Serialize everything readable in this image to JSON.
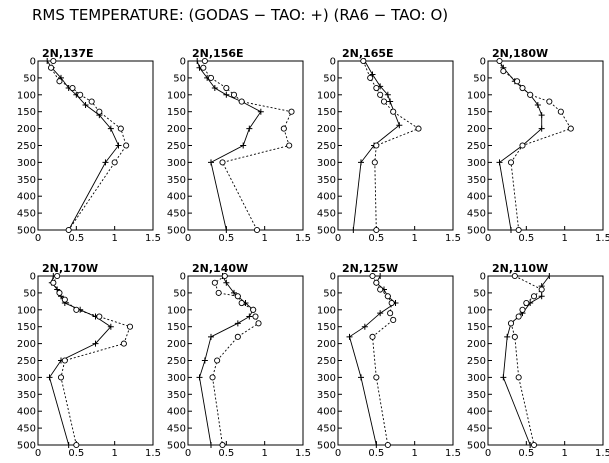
{
  "title": "RMS TEMPERATURE: (GODAS − TAO: +) (RA6 − TAO: O)",
  "chart_data": [
    {
      "type": "line",
      "title": "2N,137E",
      "xlim": [
        0,
        1.5
      ],
      "ylim": [
        500,
        0
      ],
      "x_ticks": [
        "0",
        "0.5",
        "1",
        "1.5"
      ],
      "y_ticks": [
        "0",
        "50",
        "100",
        "150",
        "200",
        "250",
        "300",
        "350",
        "400",
        "450",
        "500"
      ],
      "series": [
        {
          "marker": "+",
          "style": "solid",
          "points": [
            [
              0.12,
              0
            ],
            [
              0.18,
              20
            ],
            [
              0.3,
              50
            ],
            [
              0.4,
              80
            ],
            [
              0.5,
              100
            ],
            [
              0.62,
              130
            ],
            [
              0.8,
              160
            ],
            [
              0.95,
              200
            ],
            [
              1.05,
              250
            ],
            [
              0.88,
              300
            ],
            [
              0.4,
              500
            ]
          ]
        },
        {
          "marker": "o",
          "style": "dashed",
          "points": [
            [
              0.2,
              0
            ],
            [
              0.17,
              20
            ],
            [
              0.28,
              60
            ],
            [
              0.45,
              80
            ],
            [
              0.55,
              100
            ],
            [
              0.7,
              120
            ],
            [
              0.8,
              150
            ],
            [
              1.08,
              200
            ],
            [
              1.15,
              250
            ],
            [
              1.0,
              300
            ],
            [
              0.4,
              500
            ]
          ]
        }
      ]
    },
    {
      "type": "line",
      "title": "2N,156E",
      "xlim": [
        0,
        1.5
      ],
      "ylim": [
        500,
        0
      ],
      "x_ticks": [
        "0",
        "0.5",
        "1",
        "1.5"
      ],
      "y_ticks": [
        "0",
        "50",
        "100",
        "150",
        "200",
        "250",
        "300",
        "350",
        "400",
        "450",
        "500"
      ],
      "series": [
        {
          "marker": "+",
          "style": "solid",
          "points": [
            [
              0.12,
              0
            ],
            [
              0.15,
              20
            ],
            [
              0.25,
              50
            ],
            [
              0.35,
              80
            ],
            [
              0.5,
              100
            ],
            [
              0.7,
              120
            ],
            [
              0.95,
              150
            ],
            [
              0.8,
              200
            ],
            [
              0.72,
              250
            ],
            [
              0.3,
              300
            ],
            [
              0.5,
              500
            ]
          ]
        },
        {
          "marker": "o",
          "style": "dashed",
          "points": [
            [
              0.22,
              0
            ],
            [
              0.2,
              20
            ],
            [
              0.3,
              50
            ],
            [
              0.5,
              80
            ],
            [
              0.6,
              100
            ],
            [
              0.7,
              120
            ],
            [
              1.35,
              150
            ],
            [
              1.25,
              200
            ],
            [
              1.32,
              250
            ],
            [
              0.45,
              300
            ],
            [
              0.9,
              500
            ]
          ]
        }
      ]
    },
    {
      "type": "line",
      "title": "2N,165E",
      "xlim": [
        0,
        1.5
      ],
      "ylim": [
        500,
        0
      ],
      "x_ticks": [
        "0",
        "0.5",
        "1",
        "1.5"
      ],
      "y_ticks": [
        "0",
        "50",
        "100",
        "150",
        "200",
        "250",
        "300",
        "350",
        "400",
        "450",
        "500"
      ],
      "series": [
        {
          "marker": "+",
          "style": "solid",
          "points": [
            [
              0.35,
              0
            ],
            [
              0.45,
              40
            ],
            [
              0.55,
              75
            ],
            [
              0.65,
              100
            ],
            [
              0.68,
              120
            ],
            [
              0.8,
              190
            ],
            [
              0.47,
              250
            ],
            [
              0.3,
              300
            ],
            [
              0.2,
              500
            ]
          ]
        },
        {
          "marker": "o",
          "style": "dashed",
          "points": [
            [
              0.33,
              0
            ],
            [
              0.42,
              50
            ],
            [
              0.5,
              80
            ],
            [
              0.55,
              100
            ],
            [
              0.6,
              120
            ],
            [
              0.72,
              150
            ],
            [
              1.05,
              200
            ],
            [
              0.5,
              250
            ],
            [
              0.48,
              300
            ],
            [
              0.5,
              500
            ]
          ]
        }
      ]
    },
    {
      "type": "line",
      "title": "2N,180W",
      "xlim": [
        0,
        1.5
      ],
      "ylim": [
        500,
        0
      ],
      "x_ticks": [
        "0",
        "0.5",
        "1",
        "1.5"
      ],
      "y_ticks": [
        "0",
        "50",
        "100",
        "150",
        "200",
        "250",
        "300",
        "350",
        "400",
        "450",
        "500"
      ],
      "series": [
        {
          "marker": "+",
          "style": "solid",
          "points": [
            [
              0.15,
              0
            ],
            [
              0.2,
              20
            ],
            [
              0.35,
              60
            ],
            [
              0.45,
              80
            ],
            [
              0.55,
              100
            ],
            [
              0.65,
              130
            ],
            [
              0.7,
              160
            ],
            [
              0.7,
              200
            ],
            [
              0.45,
              250
            ],
            [
              0.15,
              300
            ],
            [
              0.3,
              500
            ]
          ]
        },
        {
          "marker": "o",
          "style": "dashed",
          "points": [
            [
              0.15,
              0
            ],
            [
              0.2,
              30
            ],
            [
              0.38,
              60
            ],
            [
              0.45,
              80
            ],
            [
              0.55,
              100
            ],
            [
              0.8,
              120
            ],
            [
              0.95,
              150
            ],
            [
              1.08,
              200
            ],
            [
              0.45,
              250
            ],
            [
              0.3,
              300
            ],
            [
              0.4,
              500
            ]
          ]
        }
      ]
    },
    {
      "type": "line",
      "title": "2N,170W",
      "xlim": [
        0,
        1.5
      ],
      "ylim": [
        500,
        0
      ],
      "x_ticks": [
        "0",
        "0.5",
        "1",
        "1.5"
      ],
      "y_ticks": [
        "0",
        "50",
        "100",
        "150",
        "200",
        "250",
        "300",
        "350",
        "400",
        "450",
        "500"
      ],
      "series": [
        {
          "marker": "+",
          "style": "solid",
          "points": [
            [
              0.2,
              0
            ],
            [
              0.18,
              20
            ],
            [
              0.25,
              40
            ],
            [
              0.3,
              60
            ],
            [
              0.35,
              80
            ],
            [
              0.55,
              100
            ],
            [
              0.75,
              120
            ],
            [
              0.95,
              150
            ],
            [
              0.75,
              200
            ],
            [
              0.3,
              250
            ],
            [
              0.15,
              300
            ],
            [
              0.4,
              500
            ]
          ]
        },
        {
          "marker": "o",
          "style": "dashed",
          "points": [
            [
              0.25,
              0
            ],
            [
              0.2,
              20
            ],
            [
              0.28,
              50
            ],
            [
              0.35,
              70
            ],
            [
              0.5,
              100
            ],
            [
              0.8,
              120
            ],
            [
              1.2,
              150
            ],
            [
              1.12,
              200
            ],
            [
              0.35,
              250
            ],
            [
              0.3,
              300
            ],
            [
              0.5,
              500
            ]
          ]
        }
      ]
    },
    {
      "type": "line",
      "title": "2N,140W",
      "xlim": [
        0,
        1.5
      ],
      "ylim": [
        500,
        0
      ],
      "x_ticks": [
        "0",
        "0.5",
        "1",
        "1.5"
      ],
      "y_ticks": [
        "0",
        "50",
        "100",
        "150",
        "200",
        "250",
        "300",
        "350",
        "400",
        "450",
        "500"
      ],
      "series": [
        {
          "marker": "+",
          "style": "solid",
          "points": [
            [
              0.45,
              0
            ],
            [
              0.5,
              20
            ],
            [
              0.6,
              50
            ],
            [
              0.65,
              60
            ],
            [
              0.75,
              80
            ],
            [
              0.85,
              100
            ],
            [
              0.8,
              120
            ],
            [
              0.65,
              140
            ],
            [
              0.3,
              180
            ],
            [
              0.22,
              250
            ],
            [
              0.15,
              300
            ],
            [
              0.3,
              500
            ]
          ]
        },
        {
          "marker": "o",
          "style": "dashed",
          "points": [
            [
              0.48,
              0
            ],
            [
              0.35,
              20
            ],
            [
              0.4,
              50
            ],
            [
              0.65,
              60
            ],
            [
              0.7,
              80
            ],
            [
              0.85,
              100
            ],
            [
              0.88,
              120
            ],
            [
              0.92,
              140
            ],
            [
              0.65,
              180
            ],
            [
              0.38,
              250
            ],
            [
              0.32,
              300
            ],
            [
              0.45,
              500
            ]
          ]
        }
      ]
    },
    {
      "type": "line",
      "title": "2N,125W",
      "xlim": [
        0,
        1.5
      ],
      "ylim": [
        500,
        0
      ],
      "x_ticks": [
        "0",
        "0.5",
        "1",
        "1.5"
      ],
      "y_ticks": [
        "0",
        "50",
        "100",
        "150",
        "200",
        "250",
        "300",
        "350",
        "400",
        "450",
        "500"
      ],
      "series": [
        {
          "marker": "+",
          "style": "solid",
          "points": [
            [
              0.55,
              0
            ],
            [
              0.5,
              20
            ],
            [
              0.6,
              40
            ],
            [
              0.65,
              60
            ],
            [
              0.75,
              80
            ],
            [
              0.55,
              110
            ],
            [
              0.35,
              150
            ],
            [
              0.15,
              180
            ],
            [
              0.3,
              300
            ],
            [
              0.5,
              500
            ]
          ]
        },
        {
          "marker": "o",
          "style": "dashed",
          "points": [
            [
              0.45,
              0
            ],
            [
              0.5,
              20
            ],
            [
              0.55,
              40
            ],
            [
              0.65,
              60
            ],
            [
              0.7,
              80
            ],
            [
              0.68,
              110
            ],
            [
              0.72,
              130
            ],
            [
              0.45,
              180
            ],
            [
              0.5,
              300
            ],
            [
              0.65,
              500
            ]
          ]
        }
      ]
    },
    {
      "type": "line",
      "title": "2N,110W",
      "xlim": [
        0,
        1.5
      ],
      "ylim": [
        500,
        0
      ],
      "x_ticks": [
        "0",
        "0.5",
        "1",
        "1.5"
      ],
      "y_ticks": [
        "0",
        "50",
        "100",
        "150",
        "200",
        "250",
        "300",
        "350",
        "400",
        "450",
        "500"
      ],
      "series": [
        {
          "marker": "+",
          "style": "solid",
          "points": [
            [
              0.8,
              0
            ],
            [
              0.7,
              30
            ],
            [
              0.7,
              60
            ],
            [
              0.55,
              80
            ],
            [
              0.45,
              110
            ],
            [
              0.3,
              140
            ],
            [
              0.25,
              180
            ],
            [
              0.2,
              300
            ],
            [
              0.55,
              500
            ]
          ]
        },
        {
          "marker": "o",
          "style": "dashed",
          "points": [
            [
              0.35,
              0
            ],
            [
              0.7,
              40
            ],
            [
              0.6,
              60
            ],
            [
              0.5,
              80
            ],
            [
              0.45,
              100
            ],
            [
              0.4,
              120
            ],
            [
              0.3,
              140
            ],
            [
              0.35,
              180
            ],
            [
              0.4,
              300
            ],
            [
              0.6,
              500
            ]
          ]
        }
      ]
    }
  ]
}
